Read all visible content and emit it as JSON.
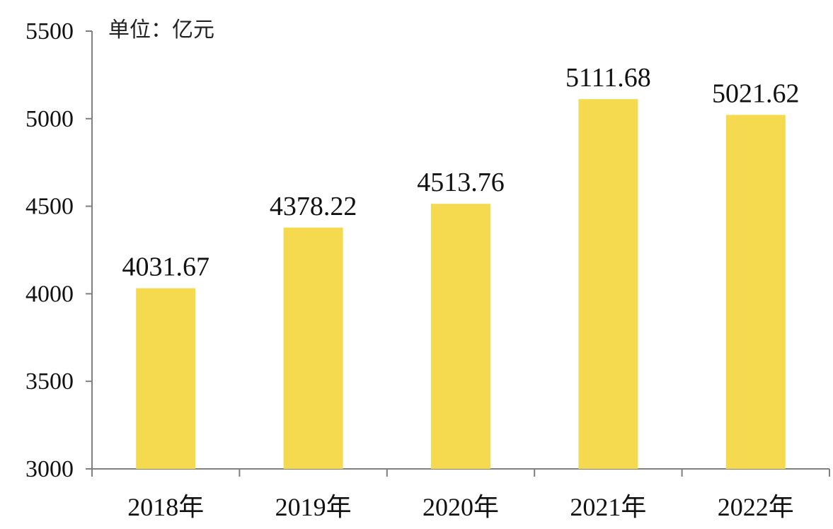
{
  "chart_data": {
    "type": "bar",
    "unit_label": "单位：亿元",
    "categories": [
      "2018年",
      "2019年",
      "2020年",
      "2021年",
      "2022年"
    ],
    "values": [
      4031.67,
      4378.22,
      4513.76,
      5111.68,
      5021.62
    ],
    "data_labels": [
      "4031.67",
      "4378.22",
      "4513.76",
      "5111.68",
      "5021.62"
    ],
    "ylim": [
      3000,
      5500
    ],
    "yticks": [
      3000,
      3500,
      4000,
      4500,
      5000,
      5500
    ],
    "grid": false,
    "legend": "none",
    "colors": {
      "bar": "#F5DA4F",
      "axis": "#7f7f7f",
      "text": "#111111"
    }
  }
}
